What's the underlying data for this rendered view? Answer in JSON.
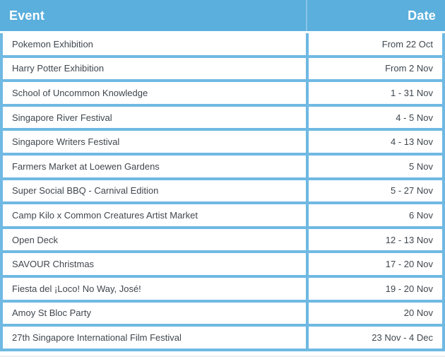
{
  "table": {
    "header": {
      "event_label": "Event",
      "date_label": "Date"
    },
    "rows": [
      {
        "event": "Pokemon Exhibition",
        "date": "From 22 Oct"
      },
      {
        "event": "Harry Potter Exhibition",
        "date": "From 2 Nov"
      },
      {
        "event": "School of Uncommon Knowledge",
        "date": "1 - 31 Nov"
      },
      {
        "event": "Singapore River Festival",
        "date": "4 - 5 Nov"
      },
      {
        "event": "Singapore Writers Festival",
        "date": "4 - 13 Nov"
      },
      {
        "event": "Farmers Market at Loewen Gardens",
        "date": "5 Nov"
      },
      {
        "event": "Super Social BBQ - Carnival Edition",
        "date": "5 - 27 Nov"
      },
      {
        "event": "Camp Kilo x Common Creatures Artist Market",
        "date": "6 Nov"
      },
      {
        "event": "Open Deck",
        "date": "12 - 13 Nov"
      },
      {
        "event": "SAVOUR Christmas",
        "date": "17 - 20 Nov"
      },
      {
        "event": "Fiesta del ¡Loco! No Way, José!",
        "date": "19 - 20 Nov"
      },
      {
        "event": "Amoy St Bloc Party",
        "date": "20 Nov"
      },
      {
        "event": "27th Singapore International Film Festival",
        "date": "23 Nov - 4 Dec"
      }
    ]
  },
  "colors": {
    "header_bg": "#5AAFDC",
    "header_text": "#FFFFFF",
    "table_border": "#6FB9E3",
    "row_bg": "#FFFFFF",
    "row_text": "#3F474E"
  }
}
